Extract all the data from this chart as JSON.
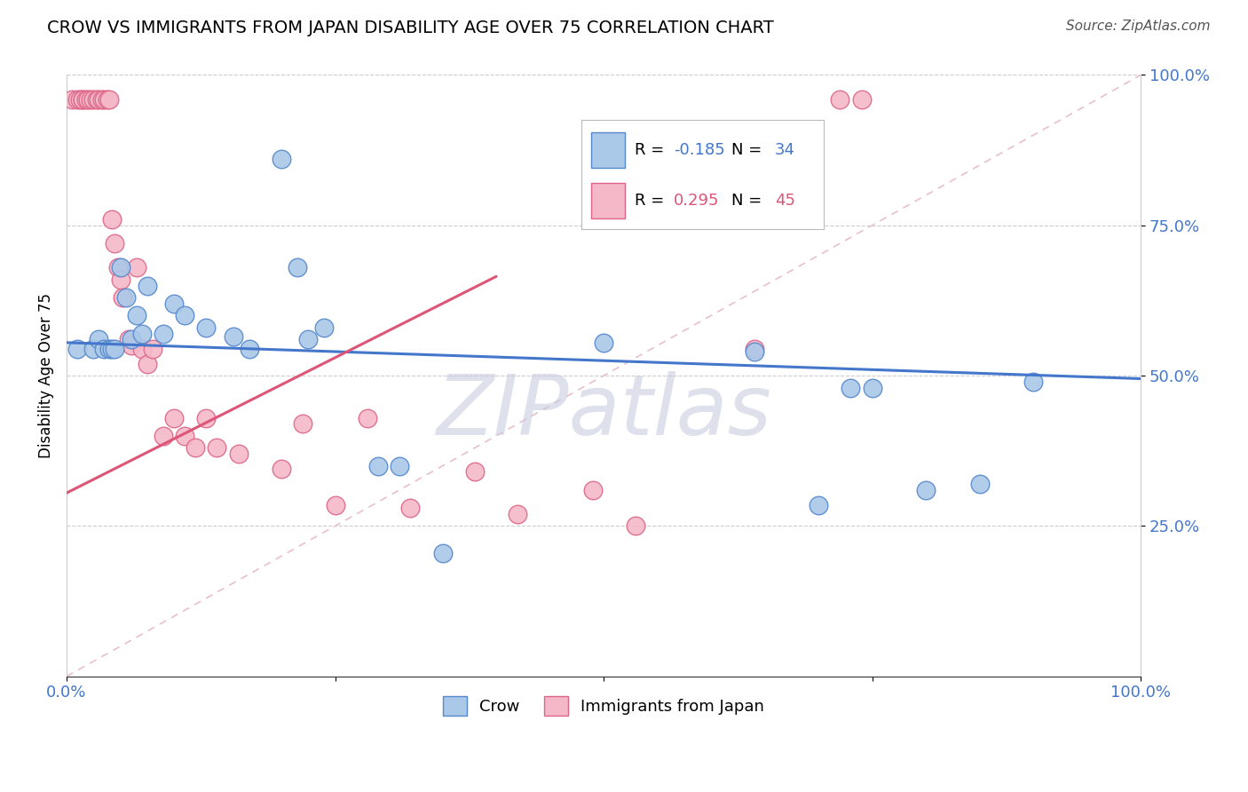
{
  "title": "CROW VS IMMIGRANTS FROM JAPAN DISABILITY AGE OVER 75 CORRELATION CHART",
  "source": "Source: ZipAtlas.com",
  "ylabel": "Disability Age Over 75",
  "legend_label_1": "Crow",
  "legend_label_2": "Immigrants from Japan",
  "R1": -0.185,
  "N1": 34,
  "R2": 0.295,
  "N2": 45,
  "color1": "#aac8e8",
  "color2": "#f5b8c8",
  "edge1": "#5588cc",
  "edge2": "#dd6688",
  "trend1_color": "#4477cc",
  "trend2_color": "#dd5577",
  "diag_color": "#e8c0cc",
  "watermark": "ZIPatlas",
  "watermark_color": "#c8cce0",
  "crow_x": [
    0.01,
    0.025,
    0.03,
    0.035,
    0.04,
    0.042,
    0.045,
    0.05,
    0.055,
    0.06,
    0.065,
    0.07,
    0.075,
    0.09,
    0.1,
    0.11,
    0.13,
    0.155,
    0.17,
    0.2,
    0.215,
    0.225,
    0.24,
    0.29,
    0.31,
    0.35,
    0.5,
    0.64,
    0.7,
    0.73,
    0.75,
    0.8,
    0.85,
    0.9
  ],
  "crow_y": [
    0.545,
    0.545,
    0.56,
    0.545,
    0.545,
    0.545,
    0.545,
    0.68,
    0.63,
    0.56,
    0.6,
    0.57,
    0.65,
    0.57,
    0.62,
    0.6,
    0.58,
    0.565,
    0.545,
    0.86,
    0.68,
    0.56,
    0.58,
    0.35,
    0.35,
    0.205,
    0.555,
    0.54,
    0.285,
    0.48,
    0.48,
    0.31,
    0.32,
    0.49
  ],
  "japan_x": [
    0.005,
    0.01,
    0.012,
    0.015,
    0.015,
    0.018,
    0.02,
    0.022,
    0.025,
    0.028,
    0.03,
    0.033,
    0.035,
    0.038,
    0.04,
    0.042,
    0.045,
    0.048,
    0.05,
    0.052,
    0.058,
    0.06,
    0.065,
    0.07,
    0.075,
    0.08,
    0.09,
    0.1,
    0.11,
    0.12,
    0.13,
    0.14,
    0.16,
    0.2,
    0.22,
    0.25,
    0.28,
    0.32,
    0.38,
    0.42,
    0.49,
    0.53,
    0.64,
    0.72,
    0.74
  ],
  "japan_y": [
    0.96,
    0.96,
    0.96,
    0.96,
    0.96,
    0.96,
    0.96,
    0.96,
    0.96,
    0.96,
    0.96,
    0.96,
    0.96,
    0.96,
    0.96,
    0.76,
    0.72,
    0.68,
    0.66,
    0.63,
    0.56,
    0.55,
    0.68,
    0.545,
    0.52,
    0.545,
    0.4,
    0.43,
    0.4,
    0.38,
    0.43,
    0.38,
    0.37,
    0.345,
    0.42,
    0.285,
    0.43,
    0.28,
    0.34,
    0.27,
    0.31,
    0.25,
    0.545,
    0.96,
    0.96
  ],
  "blue_line_x": [
    0.0,
    1.0
  ],
  "blue_line_y": [
    0.555,
    0.495
  ],
  "pink_line_x": [
    0.0,
    0.4
  ],
  "pink_line_y": [
    0.305,
    0.665
  ],
  "xlim": [
    0,
    1
  ],
  "ylim": [
    0,
    1
  ]
}
